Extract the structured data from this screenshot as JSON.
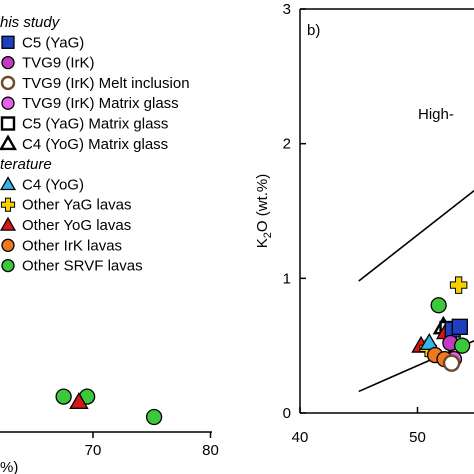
{
  "chart_data": [
    {
      "type": "scatter",
      "xlim": [
        60,
        80
      ],
      "x_ticks": [
        "70",
        "80"
      ],
      "xlabel": "%)",
      "grid": false,
      "legend": {
        "placement": "top-left",
        "groups": [
          {
            "header": "his study",
            "entries": [
              {
                "label": "C5 (YaG)",
                "marker": "square",
                "color": "#1f3fbf"
              },
              {
                "label": "TVG9 (IrK)",
                "marker": "circle",
                "color": "#c23cc2"
              },
              {
                "label": "TVG9 (IrK) Melt inclusion",
                "marker": "circle-open",
                "color": "#6b4a2a"
              },
              {
                "label": "TVG9 (IrK) Matrix glass",
                "marker": "circle",
                "color": "#e860e8"
              },
              {
                "label": "C5 (YaG) Matrix glass",
                "marker": "square-open",
                "color": "#000000"
              },
              {
                "label": "C4 (YoG) Matrix glass",
                "marker": "triangle-open",
                "color": "#000000"
              }
            ]
          },
          {
            "header": "terature",
            "entries": [
              {
                "label": "C4 (YoG)",
                "marker": "triangle",
                "color": "#33b5e5"
              },
              {
                "label": "Other YaG lavas",
                "marker": "cross",
                "color": "#f5d000"
              },
              {
                "label": "Other YoG lavas",
                "marker": "triangle",
                "color": "#d81818"
              },
              {
                "label": "Other IrK lavas",
                "marker": "circle",
                "color": "#f07820"
              },
              {
                "label": "Other SRVF lavas",
                "marker": "circle",
                "color": "#3cc83c"
              }
            ]
          }
        ]
      },
      "points": [
        {
          "series": "Other SRVF lavas",
          "x": 67.5,
          "y": 0.33
        },
        {
          "series": "Other SRVF lavas",
          "x": 69.5,
          "y": 0.33
        },
        {
          "series": "Other YoG lavas",
          "x": 68.8,
          "y": 0.28
        },
        {
          "series": "Other SRVF lavas",
          "x": 75.2,
          "y": 0.14
        }
      ]
    },
    {
      "type": "scatter",
      "panel_label": "b)",
      "xlim": [
        40,
        57
      ],
      "ylim": [
        0,
        3
      ],
      "x_ticks": [
        "40",
        "50"
      ],
      "y_ticks": [
        "0",
        "1",
        "2",
        "3"
      ],
      "ylabel_main": "K",
      "ylabel_sub": "2",
      "ylabel_rest": "O (wt.%)",
      "annotation": "High-",
      "grid": false,
      "boundary_lines": [
        {
          "x": [
            45,
            57
          ],
          "y": [
            0.98,
            1.8
          ]
        },
        {
          "x": [
            45,
            57
          ],
          "y": [
            0.16,
            0.62
          ]
        }
      ],
      "points": [
        {
          "series": "Other SRVF lavas",
          "x": 51.8,
          "y": 0.8
        },
        {
          "series": "Other YaG lavas",
          "x": 53.5,
          "y": 0.95
        },
        {
          "series": "Other YoG lavas",
          "x": 50.3,
          "y": 0.5
        },
        {
          "series": "Other YaG lavas",
          "x": 50.9,
          "y": 0.48
        },
        {
          "series": "C4 (YoG)",
          "x": 51.0,
          "y": 0.52
        },
        {
          "series": "Other IrK lavas",
          "x": 51.5,
          "y": 0.43
        },
        {
          "series": "C4 (YoG) Matrix glass",
          "x": 52.2,
          "y": 0.64
        },
        {
          "series": "C5 (YaG) Matrix glass",
          "x": 52.6,
          "y": 0.62
        },
        {
          "series": "Other YoG lavas",
          "x": 52.4,
          "y": 0.6
        },
        {
          "series": "C5 (YaG)",
          "x": 53.0,
          "y": 0.62
        },
        {
          "series": "C5 (YaG)",
          "x": 53.6,
          "y": 0.64
        },
        {
          "series": "TVG9 (IrK)",
          "x": 52.8,
          "y": 0.52
        },
        {
          "series": "TVG9 (IrK) Matrix glass",
          "x": 53.1,
          "y": 0.4
        },
        {
          "series": "Other IrK lavas",
          "x": 52.3,
          "y": 0.4
        },
        {
          "series": "TVG9 (IrK) Melt inclusion",
          "x": 52.9,
          "y": 0.37
        },
        {
          "series": "Other SRVF lavas",
          "x": 53.8,
          "y": 0.5
        }
      ]
    }
  ]
}
